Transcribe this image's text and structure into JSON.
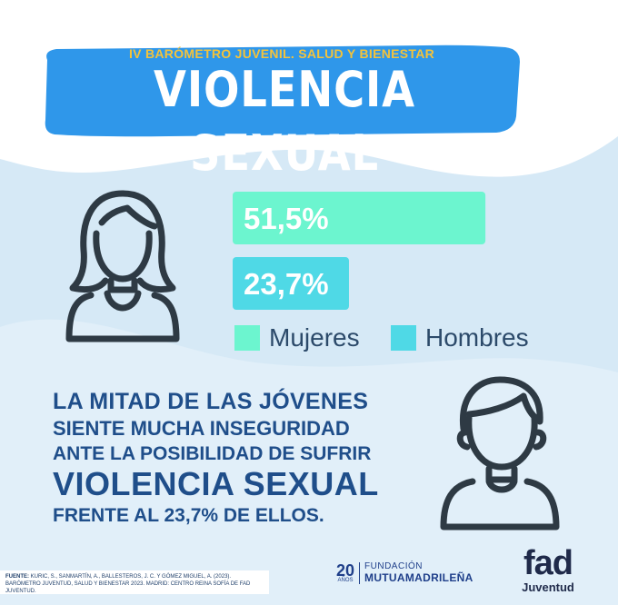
{
  "banner": {
    "subtitle": "IV BARÓMETRO JUVENIL. SALUD Y BIENESTAR",
    "title": "VIOLENCIA SEXUAL"
  },
  "chart_data": {
    "type": "bar",
    "orientation": "horizontal",
    "categories": [
      "Mujeres",
      "Hombres"
    ],
    "values": [
      51.5,
      23.7
    ],
    "value_labels": [
      "51,5%",
      "23,7%"
    ],
    "colors": [
      "#6cf5cf",
      "#4fd9e6"
    ],
    "xlim": [
      0,
      100
    ],
    "legend": [
      "Mujeres",
      "Hombres"
    ],
    "legend_position": "bottom"
  },
  "headline": {
    "line1": "LA MITAD DE LAS JÓVENES",
    "line2": "SIENTE MUCHA INSEGURIDAD",
    "line3": "ANTE LA POSIBILIDAD DE SUFRIR",
    "line4": "VIOLENCIA SEXUAL",
    "line5": "FRENTE AL 23,7% DE ELLOS."
  },
  "source": {
    "label": "FUENTE:",
    "text": "KURIC, S., SANMARTÍN, A., BALLESTEROS, J. C. Y GÓMEZ MIGUEL, A. (2023). BARÓMETRO JUVENTUD, SALUD Y BIENESTAR 2023. MADRID: CENTRO REINA SOFÍA DE FAD JUVENTUD."
  },
  "logos": {
    "fundacion_years": "20",
    "fundacion_years_label": "AÑOS",
    "fundacion_top": "FUNDACIÓN",
    "fundacion_bottom": "MUTUAMADRILEÑA",
    "fad_word": "fad",
    "fad_sub": "Juventud"
  },
  "colors": {
    "background": "#d6e9f6",
    "banner": "#2f97ea",
    "headline": "#1f4e8a",
    "icon": "#2e3a44"
  }
}
